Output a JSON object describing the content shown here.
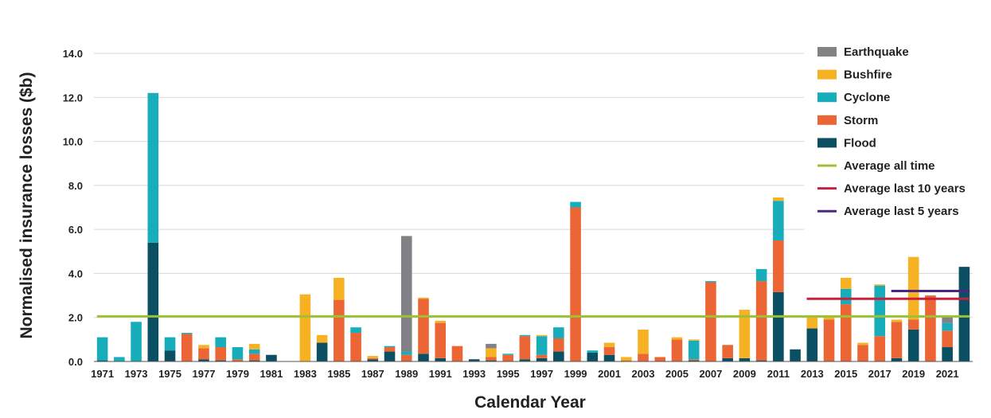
{
  "chart_data": {
    "type": "bar",
    "stacked": true,
    "title": "",
    "xlabel": "Calendar Year",
    "ylabel": "Normalised insurance losses ($b)",
    "ylim": [
      0,
      14
    ],
    "yticks": [
      "0.0",
      "2.0",
      "4.0",
      "6.0",
      "8.0",
      "10.0",
      "12.0",
      "14.0"
    ],
    "grid": "horizontal",
    "legend_position": "top-right",
    "categories": [
      "1971",
      "1972",
      "1973",
      "1974",
      "1975",
      "1976",
      "1977",
      "1978",
      "1979",
      "1980",
      "1981",
      "1982",
      "1983",
      "1984",
      "1985",
      "1986",
      "1987",
      "1988",
      "1989",
      "1990",
      "1991",
      "1992",
      "1993",
      "1994",
      "1995",
      "1996",
      "1997",
      "1998",
      "1999",
      "2000",
      "2001",
      "2002",
      "2003",
      "2004",
      "2005",
      "2006",
      "2007",
      "2008",
      "2009",
      "2010",
      "2011",
      "2012",
      "2013",
      "2014",
      "2015",
      "2016",
      "2017",
      "2018",
      "2019",
      "2020",
      "2021",
      "2022"
    ],
    "x_tick_labels": [
      "1971",
      "1973",
      "1975",
      "1977",
      "1979",
      "1981",
      "1983",
      "1985",
      "1987",
      "1989",
      "1991",
      "1993",
      "1995",
      "1997",
      "1999",
      "2001",
      "2003",
      "2005",
      "2007",
      "2009",
      "2011",
      "2013",
      "2015",
      "2017",
      "2019",
      "2021"
    ],
    "series": [
      {
        "name": "Flood",
        "color": "#0b4f63",
        "values": [
          0.05,
          0.0,
          0.0,
          5.4,
          0.5,
          0.0,
          0.1,
          0.05,
          0.0,
          0.05,
          0.3,
          0.0,
          0.0,
          0.85,
          0.0,
          0.0,
          0.1,
          0.45,
          0.0,
          0.35,
          0.15,
          0.0,
          0.1,
          0.05,
          0.0,
          0.1,
          0.15,
          0.45,
          0.0,
          0.4,
          0.3,
          0.0,
          0.0,
          0.0,
          0.0,
          0.05,
          0.0,
          0.15,
          0.15,
          0.05,
          3.15,
          0.55,
          1.5,
          0.0,
          0.0,
          0.0,
          0.0,
          0.15,
          1.45,
          0.0,
          0.65,
          4.3
        ]
      },
      {
        "name": "Storm",
        "color": "#ec6535",
        "values": [
          0.0,
          0.0,
          0.0,
          0.0,
          0.0,
          1.25,
          0.5,
          0.6,
          0.1,
          0.3,
          0.0,
          0.0,
          0.0,
          0.0,
          2.8,
          1.3,
          0.05,
          0.2,
          0.3,
          2.5,
          1.6,
          0.7,
          0.0,
          0.15,
          0.3,
          1.05,
          0.15,
          0.6,
          7.0,
          0.0,
          0.35,
          0.05,
          0.35,
          0.2,
          1.0,
          0.05,
          3.6,
          0.6,
          0.0,
          3.6,
          2.35,
          0.0,
          0.0,
          1.9,
          2.6,
          0.75,
          1.15,
          1.65,
          0.45,
          3.0,
          0.75,
          0.0
        ]
      },
      {
        "name": "Cyclone",
        "color": "#17adbb",
        "values": [
          1.05,
          0.2,
          1.8,
          6.8,
          0.6,
          0.05,
          0.0,
          0.45,
          0.55,
          0.2,
          0.0,
          0.0,
          0.0,
          0.0,
          0.0,
          0.25,
          0.0,
          0.05,
          0.15,
          0.0,
          0.0,
          0.0,
          0.0,
          0.0,
          0.05,
          0.05,
          0.85,
          0.5,
          0.25,
          0.1,
          0.0,
          0.0,
          0.0,
          0.0,
          0.0,
          0.85,
          0.05,
          0.0,
          0.0,
          0.55,
          1.8,
          0.0,
          0.0,
          0.0,
          0.7,
          0.0,
          2.3,
          0.0,
          0.0,
          0.0,
          0.35,
          0.0
        ]
      },
      {
        "name": "Bushfire",
        "color": "#f6b223",
        "values": [
          0.0,
          0.0,
          0.0,
          0.0,
          0.0,
          0.0,
          0.15,
          0.0,
          0.0,
          0.25,
          0.0,
          0.0,
          3.05,
          0.35,
          1.0,
          0.0,
          0.1,
          0.0,
          0.0,
          0.05,
          0.1,
          0.0,
          0.0,
          0.4,
          0.0,
          0.0,
          0.05,
          0.0,
          0.0,
          0.0,
          0.2,
          0.15,
          1.1,
          0.0,
          0.1,
          0.05,
          0.0,
          0.0,
          2.2,
          0.0,
          0.15,
          0.0,
          0.5,
          0.1,
          0.5,
          0.1,
          0.05,
          0.1,
          2.85,
          0.0,
          0.0,
          0.0
        ]
      },
      {
        "name": "Earthquake",
        "color": "#808285",
        "values": [
          0.0,
          0.0,
          0.0,
          0.0,
          0.0,
          0.0,
          0.0,
          0.0,
          0.0,
          0.0,
          0.0,
          0.0,
          0.0,
          0.0,
          0.0,
          0.0,
          0.0,
          0.0,
          5.25,
          0.0,
          0.0,
          0.0,
          0.0,
          0.2,
          0.0,
          0.0,
          0.0,
          0.0,
          0.0,
          0.0,
          0.0,
          0.0,
          0.0,
          0.0,
          0.0,
          0.0,
          0.0,
          0.0,
          0.0,
          0.0,
          0.0,
          0.0,
          0.0,
          0.0,
          0.0,
          0.0,
          0.0,
          0.0,
          0.0,
          0.0,
          0.3,
          0.0
        ]
      }
    ],
    "reference_lines": [
      {
        "name": "Average all time",
        "color": "#9dc135",
        "value": 2.05,
        "x_from": "1971",
        "x_to": "2022"
      },
      {
        "name": "Average last 10 years",
        "color": "#c8213f",
        "value": 2.85,
        "x_from": "2013",
        "x_to": "2022"
      },
      {
        "name": "Average last 5 years",
        "color": "#4b2683",
        "value": 3.2,
        "x_from": "2018",
        "x_to": "2022"
      }
    ],
    "legend_order": [
      "Earthquake",
      "Bushfire",
      "Cyclone",
      "Storm",
      "Flood",
      "Average all time",
      "Average last 10 years",
      "Average last 5 years"
    ]
  }
}
